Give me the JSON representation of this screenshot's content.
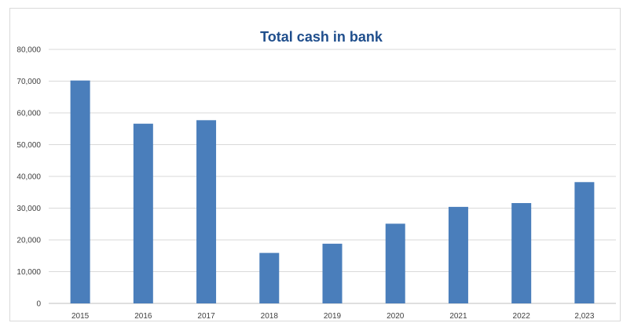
{
  "chart_data": {
    "type": "bar",
    "title": "Total cash in bank",
    "categories": [
      "2015",
      "2016",
      "2017",
      "2018",
      "2019",
      "2020",
      "2021",
      "2022",
      "2,023"
    ],
    "values": [
      70200,
      56600,
      57700,
      15900,
      18800,
      25100,
      30400,
      31600,
      38200
    ],
    "ylim": [
      0,
      80000
    ],
    "y_ticks": [
      "0",
      "10,000",
      "20,000",
      "30,000",
      "40,000",
      "50,000",
      "60,000",
      "70,000",
      "80,000"
    ],
    "grid": true,
    "legend": "none",
    "colors": {
      "bar": "#4a7ebb",
      "title": "#1f4e8c",
      "grid": "#d9d9d9"
    }
  }
}
